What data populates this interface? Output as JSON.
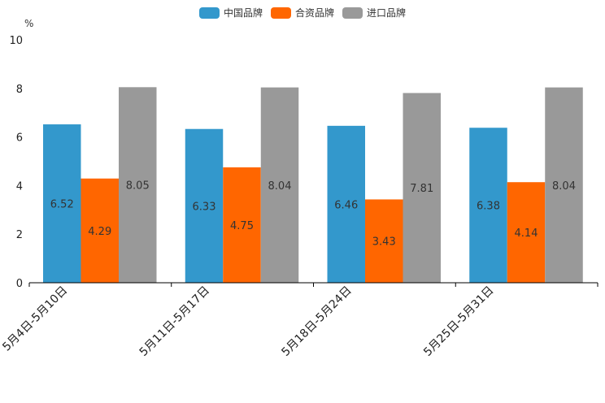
{
  "chart_data": {
    "type": "bar",
    "unit": "%",
    "categories": [
      "5月4日-5月10日",
      "5月11日-5月17日",
      "5月18日-5月24日",
      "5月25日-5月31日"
    ],
    "series": [
      {
        "name": "中国品牌",
        "color": "#3398CC",
        "values": [
          6.52,
          6.33,
          6.46,
          6.38
        ]
      },
      {
        "name": "合资品牌",
        "color": "#FF6600",
        "values": [
          4.29,
          4.75,
          3.43,
          4.14
        ]
      },
      {
        "name": "进口品牌",
        "color": "#999999",
        "values": [
          8.05,
          8.04,
          7.81,
          8.04
        ]
      }
    ],
    "bar_labels": [
      [
        "6.52",
        "6.33",
        "6.46",
        "6.38"
      ],
      [
        "4.29",
        "4.75",
        "3.43",
        "4.14"
      ],
      [
        "8.05",
        "8.04",
        "7.81",
        "8.04"
      ]
    ],
    "ylim": [
      0,
      10
    ],
    "yticks": [
      "0",
      "2",
      "4",
      "6",
      "8",
      "10"
    ],
    "legend_position": "top-center",
    "grid": false
  }
}
